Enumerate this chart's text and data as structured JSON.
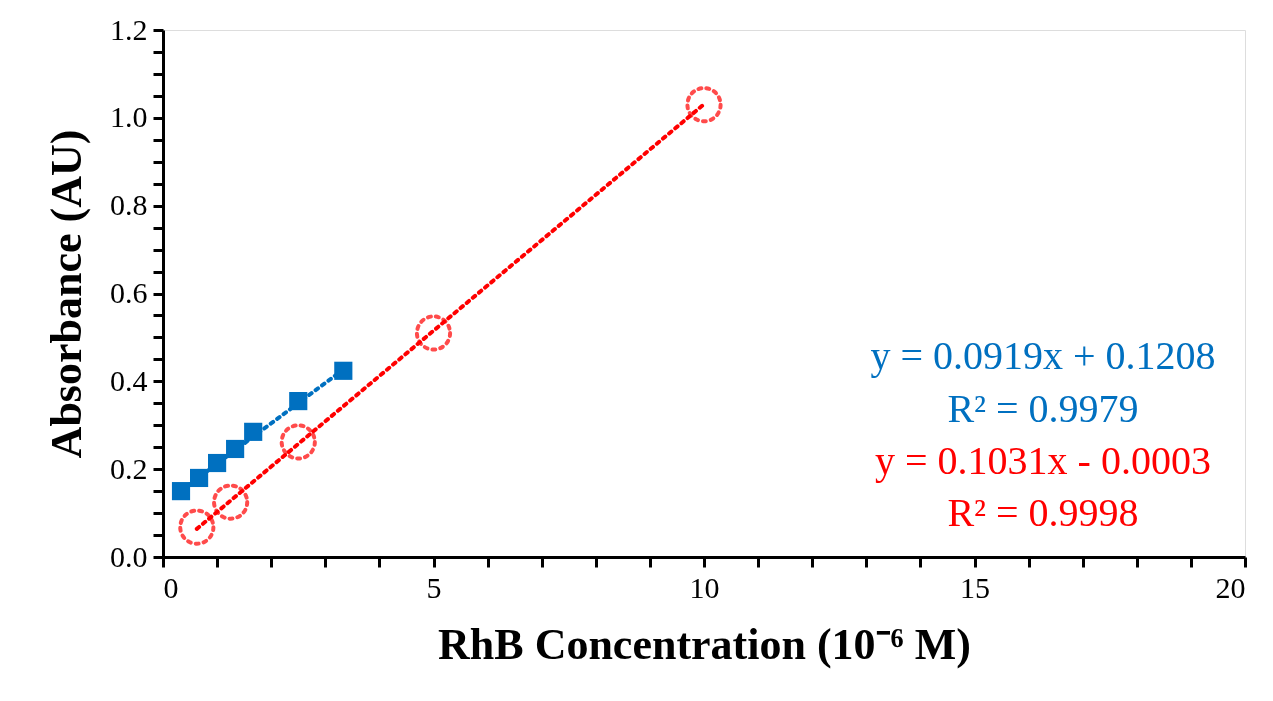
{
  "chart_data": {
    "type": "scatter",
    "xlabel": "RhB Concentration (10⁻⁶ M)",
    "ylabel": "Absorbance (AU)",
    "xlim": [
      0,
      20
    ],
    "ylim": [
      0,
      1.2
    ],
    "xticks": [
      0,
      {
        "value": 1,
        "label": null
      },
      {
        "value": 2,
        "label": null
      },
      {
        "value": 3,
        "label": null
      },
      {
        "value": 4,
        "label": null
      },
      5,
      {
        "value": 6,
        "label": null
      },
      {
        "value": 7,
        "label": null
      },
      {
        "value": 8,
        "label": null
      },
      {
        "value": 9,
        "label": null
      },
      10,
      {
        "value": 11,
        "label": null
      },
      {
        "value": 12,
        "label": null
      },
      {
        "value": 13,
        "label": null
      },
      {
        "value": 14,
        "label": null
      },
      15,
      {
        "value": 16,
        "label": null
      },
      {
        "value": 17,
        "label": null
      },
      {
        "value": 18,
        "label": null
      },
      {
        "value": 19,
        "label": null
      },
      20
    ],
    "yticks": [
      {
        "value": 0,
        "label": "0.0"
      },
      {
        "value": 0.05,
        "label": null
      },
      {
        "value": 0.1,
        "label": null
      },
      {
        "value": 0.15,
        "label": null
      },
      0.2,
      {
        "value": 0.25,
        "label": null
      },
      {
        "value": 0.3,
        "label": null
      },
      {
        "value": 0.35,
        "label": null
      },
      0.4,
      {
        "value": 0.45,
        "label": null
      },
      {
        "value": 0.5,
        "label": null
      },
      {
        "value": 0.55,
        "label": null
      },
      0.6,
      {
        "value": 0.65,
        "label": null
      },
      {
        "value": 0.7,
        "label": null
      },
      {
        "value": 0.75,
        "label": null
      },
      0.8,
      {
        "value": 0.85,
        "label": null
      },
      {
        "value": 0.9,
        "label": null
      },
      {
        "value": 0.95,
        "label": null
      },
      {
        "value": 1,
        "label": "1.0"
      },
      {
        "value": 1.05,
        "label": null
      },
      {
        "value": 1.1,
        "label": null
      },
      {
        "value": 1.15,
        "label": null
      },
      1.2
    ],
    "grid": false,
    "series": [
      {
        "type": "line",
        "color": "#0070c0",
        "marker": "none",
        "line_style": "dotted",
        "x": [
          0.333,
          3.333
        ],
        "values": [
          0.151,
          0.427
        ]
      },
      {
        "type": "line",
        "color": "#ff0000",
        "marker": "none",
        "line_style": "dotted",
        "x": [
          0.625,
          10
        ],
        "values": [
          0.064,
          1.031
        ]
      },
      {
        "color": "#0070c0",
        "marker": "square",
        "x": [
          0.333,
          0.667,
          1,
          1.333,
          1.667,
          2.5,
          3.333
        ],
        "values": [
          0.15,
          0.18,
          0.214,
          0.246,
          0.285,
          0.355,
          0.424
        ]
      },
      {
        "color": "#ff0000",
        "marker": "circle",
        "line_style": "dotted",
        "x": [
          0.625,
          1.25,
          2.5,
          5,
          10
        ],
        "values": [
          0.068,
          0.125,
          0.262,
          0.51,
          1.03
        ]
      }
    ],
    "annotations": [
      "y = 0.0919x + 0.1208",
      "R² = 0.9979",
      "y = 0.1031x - 0.0003",
      "R² = 0.9998"
    ]
  }
}
